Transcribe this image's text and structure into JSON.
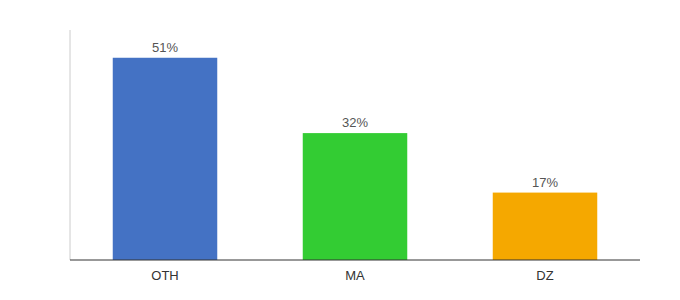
{
  "chart_data": {
    "type": "bar",
    "categories": [
      "OTH",
      "MA",
      "DZ"
    ],
    "values": [
      51,
      32,
      17
    ],
    "value_labels": [
      "51%",
      "32%",
      "17%"
    ],
    "colors": [
      "#4472c4",
      "#33cc33",
      "#f5a800"
    ],
    "ylim": [
      0,
      58
    ],
    "data_labels": true,
    "tick_labels": "x",
    "grid": false
  }
}
